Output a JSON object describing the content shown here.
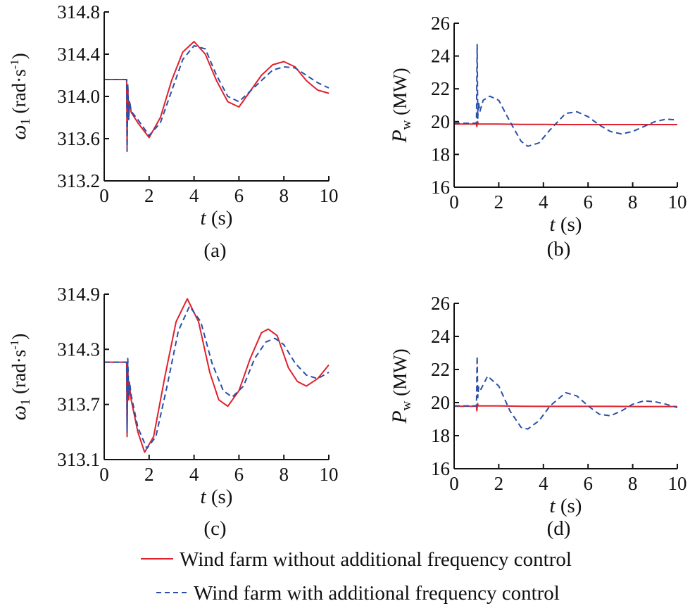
{
  "colors": {
    "without": "#e0202c",
    "with": "#2a4fa8"
  },
  "legend": [
    {
      "label": "Wind farm without additional frequency control",
      "style": "solid",
      "color": "#e0202c"
    },
    {
      "label": "Wind farm with additional frequency control",
      "style": "dashed",
      "color": "#2a4fa8"
    }
  ],
  "chart_data": [
    {
      "panel": "(a)",
      "type": "line",
      "ylabel_sym": "ω",
      "ylabel_sub": "1",
      "ylabel_unit": "(rad·s",
      "ylabel_sup": "-1",
      "ylabel_close": ")",
      "xlabel_sym": "t",
      "xlabel_unit": "(s)",
      "xlim": [
        0,
        10
      ],
      "ylim": [
        313.2,
        314.8
      ],
      "xticks": [
        "0",
        "2",
        "4",
        "6",
        "8",
        "10"
      ],
      "yticks": [
        "313.2",
        "313.6",
        "314.0",
        "314.4",
        "314.8"
      ],
      "grid": false,
      "series": [
        {
          "style": "solid",
          "color": "#e0202c",
          "x": [
            0,
            1.0,
            1.02,
            1.05,
            1.09,
            1.13,
            1.2,
            1.5,
            2.0,
            2.5,
            3.0,
            3.5,
            4.0,
            4.5,
            5.0,
            5.5,
            6.0,
            6.5,
            7.0,
            7.5,
            8.0,
            8.5,
            9.0,
            9.5,
            10.0
          ],
          "y": [
            314.16,
            314.16,
            313.5,
            314.1,
            313.8,
            313.95,
            313.85,
            313.75,
            313.61,
            313.8,
            314.15,
            314.42,
            314.52,
            314.4,
            314.15,
            313.95,
            313.9,
            314.05,
            314.2,
            314.3,
            314.33,
            314.28,
            314.15,
            314.06,
            314.03
          ]
        },
        {
          "style": "dashed",
          "color": "#2a4fa8",
          "x": [
            0,
            1.0,
            1.02,
            1.05,
            1.09,
            1.13,
            1.2,
            1.5,
            2.0,
            2.5,
            3.0,
            3.5,
            4.0,
            4.5,
            5.0,
            5.5,
            6.0,
            6.5,
            7.0,
            7.5,
            8.0,
            8.5,
            9.0,
            9.5,
            10.0
          ],
          "y": [
            314.16,
            314.16,
            313.48,
            314.12,
            313.78,
            313.96,
            313.86,
            313.78,
            313.63,
            313.75,
            314.05,
            314.35,
            314.48,
            314.45,
            314.2,
            314.0,
            313.95,
            314.05,
            314.15,
            314.25,
            314.28,
            314.27,
            314.2,
            314.13,
            314.08
          ]
        }
      ]
    },
    {
      "panel": "(b)",
      "type": "line",
      "ylabel_sym": "P",
      "ylabel_sub": "w",
      "ylabel_unit": "(MW)",
      "ylabel_sup": "",
      "ylabel_close": "",
      "xlabel_sym": "t",
      "xlabel_unit": "(s)",
      "xlim": [
        0,
        10
      ],
      "ylim": [
        16,
        26
      ],
      "xticks": [
        "0",
        "2",
        "4",
        "6",
        "8",
        "10"
      ],
      "yticks": [
        "16",
        "18",
        "20",
        "22",
        "24",
        "26"
      ],
      "grid": false,
      "series": [
        {
          "style": "solid",
          "color": "#e0202c",
          "x": [
            0,
            1.0,
            1.02,
            1.05,
            1.08,
            1.2,
            2,
            3,
            4,
            5,
            6,
            7,
            8,
            9,
            10
          ],
          "y": [
            19.85,
            19.85,
            19.7,
            20.0,
            19.85,
            19.85,
            19.85,
            19.83,
            19.83,
            19.82,
            19.82,
            19.82,
            19.82,
            19.82,
            19.82
          ]
        },
        {
          "style": "dashed",
          "color": "#2a4fa8",
          "x": [
            0,
            1.0,
            1.03,
            1.06,
            1.09,
            1.15,
            1.3,
            1.6,
            2.0,
            2.5,
            3.0,
            3.3,
            3.8,
            4.3,
            5.0,
            5.5,
            6.0,
            6.5,
            7.0,
            7.5,
            8.0,
            8.5,
            9.0,
            9.5,
            10.0
          ],
          "y": [
            19.9,
            19.9,
            24.7,
            20.2,
            21.2,
            20.6,
            21.3,
            21.55,
            21.3,
            20.0,
            18.8,
            18.5,
            18.7,
            19.5,
            20.5,
            20.6,
            20.3,
            19.8,
            19.4,
            19.25,
            19.4,
            19.7,
            20.0,
            20.15,
            20.1
          ]
        }
      ]
    },
    {
      "panel": "(c)",
      "type": "line",
      "ylabel_sym": "ω",
      "ylabel_sub": "1",
      "ylabel_unit": "(rad·s",
      "ylabel_sup": "-1",
      "ylabel_close": ")",
      "xlabel_sym": "t",
      "xlabel_unit": "(s)",
      "xlim": [
        0,
        10
      ],
      "ylim": [
        313.1,
        314.9
      ],
      "xticks": [
        "0",
        "2",
        "4",
        "6",
        "8",
        "10"
      ],
      "yticks": [
        "313.1",
        "313.7",
        "314.3",
        "314.9"
      ],
      "grid": false,
      "series": [
        {
          "style": "solid",
          "color": "#e0202c",
          "x": [
            0,
            1.0,
            1.02,
            1.05,
            1.09,
            1.13,
            1.2,
            1.5,
            1.8,
            2.2,
            2.7,
            3.2,
            3.7,
            4.2,
            4.7,
            5.1,
            5.5,
            6.0,
            6.5,
            7.0,
            7.3,
            7.7,
            8.2,
            8.6,
            9.0,
            9.5,
            10.0
          ],
          "y": [
            314.16,
            314.16,
            313.35,
            314.1,
            313.75,
            313.9,
            313.75,
            313.4,
            313.18,
            313.35,
            314.0,
            314.6,
            314.85,
            314.6,
            314.05,
            313.75,
            313.68,
            313.85,
            314.2,
            314.48,
            314.52,
            314.45,
            314.1,
            313.95,
            313.9,
            313.98,
            314.13
          ]
        },
        {
          "style": "dashed",
          "color": "#2a4fa8",
          "x": [
            0,
            1.0,
            1.02,
            1.05,
            1.09,
            1.13,
            1.2,
            1.5,
            1.9,
            2.3,
            2.8,
            3.3,
            3.8,
            4.3,
            4.8,
            5.3,
            5.7,
            6.2,
            6.7,
            7.2,
            7.6,
            8.0,
            8.5,
            9.0,
            9.5,
            10.0
          ],
          "y": [
            314.16,
            314.16,
            313.4,
            314.2,
            313.8,
            313.95,
            313.8,
            313.45,
            313.22,
            313.35,
            313.9,
            314.5,
            314.77,
            314.6,
            314.15,
            313.85,
            313.78,
            313.9,
            314.2,
            314.38,
            314.42,
            314.35,
            314.15,
            314.02,
            313.98,
            314.05
          ]
        }
      ]
    },
    {
      "panel": "(d)",
      "type": "line",
      "ylabel_sym": "P",
      "ylabel_sub": "w",
      "ylabel_unit": "(MW)",
      "ylabel_sup": "",
      "ylabel_close": "",
      "xlabel_sym": "t",
      "xlabel_unit": "(s)",
      "xlim": [
        0,
        10
      ],
      "ylim": [
        16,
        26
      ],
      "xticks": [
        "0",
        "2",
        "4",
        "6",
        "8",
        "10"
      ],
      "yticks": [
        "16",
        "18",
        "20",
        "22",
        "24",
        "26"
      ],
      "grid": false,
      "series": [
        {
          "style": "solid",
          "color": "#e0202c",
          "x": [
            0,
            1.0,
            1.02,
            1.05,
            1.08,
            1.2,
            2,
            3,
            4,
            5,
            6,
            7,
            8,
            9,
            10
          ],
          "y": [
            19.78,
            19.78,
            19.5,
            19.95,
            19.8,
            19.8,
            19.8,
            19.78,
            19.77,
            19.77,
            19.77,
            19.77,
            19.76,
            19.76,
            19.76
          ]
        },
        {
          "style": "dashed",
          "color": "#2a4fa8",
          "x": [
            0,
            1.0,
            1.03,
            1.06,
            1.1,
            1.2,
            1.5,
            2.0,
            2.5,
            3.0,
            3.3,
            3.8,
            4.3,
            5.0,
            5.5,
            6.0,
            6.5,
            7.0,
            7.5,
            8.0,
            8.5,
            9.0,
            9.5,
            10.0
          ],
          "y": [
            19.8,
            19.8,
            22.8,
            20.3,
            21.0,
            20.8,
            21.6,
            21.0,
            19.5,
            18.5,
            18.4,
            18.9,
            19.8,
            20.6,
            20.4,
            19.8,
            19.3,
            19.2,
            19.5,
            19.9,
            20.1,
            20.05,
            19.9,
            19.7
          ]
        }
      ]
    }
  ]
}
